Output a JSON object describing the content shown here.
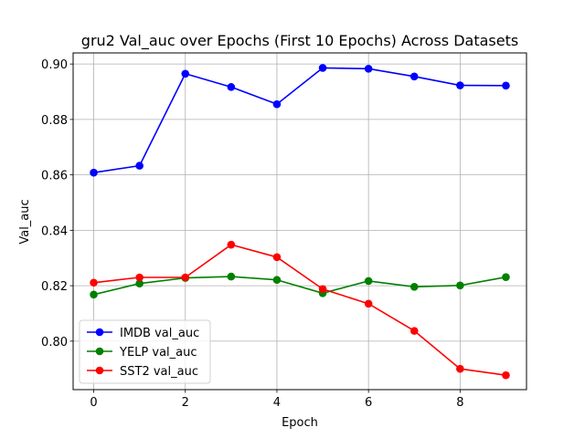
{
  "chart_data": {
    "type": "line",
    "title": "gru2 Val_auc over Epochs (First 10 Epochs) Across Datasets",
    "xlabel": "Epoch",
    "ylabel": "Val_auc",
    "x": [
      0,
      1,
      2,
      3,
      4,
      5,
      6,
      7,
      8,
      9
    ],
    "xlim": [
      -0.45,
      9.45
    ],
    "ylim": [
      0.7825,
      0.904
    ],
    "xticks": [
      0,
      2,
      4,
      6,
      8
    ],
    "yticks": [
      0.8,
      0.82,
      0.84,
      0.86,
      0.88,
      0.9
    ],
    "ytick_labels": [
      "0.80",
      "0.82",
      "0.84",
      "0.86",
      "0.88",
      "0.90"
    ],
    "grid": true,
    "legend_position": "lower-left",
    "series": [
      {
        "name": "IMDB val_auc",
        "color": "#0000ff",
        "values": [
          0.8608,
          0.8633,
          0.8965,
          0.8917,
          0.8855,
          0.8986,
          0.8983,
          0.8955,
          0.8923,
          0.8922
        ]
      },
      {
        "name": "YELP val_auc",
        "color": "#008000",
        "values": [
          0.8168,
          0.8208,
          0.8228,
          0.8233,
          0.8221,
          0.8173,
          0.8217,
          0.8196,
          0.8201,
          0.8231
        ]
      },
      {
        "name": "SST2 val_auc",
        "color": "#ff0000",
        "values": [
          0.8211,
          0.823,
          0.823,
          0.8348,
          0.8303,
          0.8188,
          0.8135,
          0.8037,
          0.79,
          0.7877
        ]
      }
    ]
  }
}
